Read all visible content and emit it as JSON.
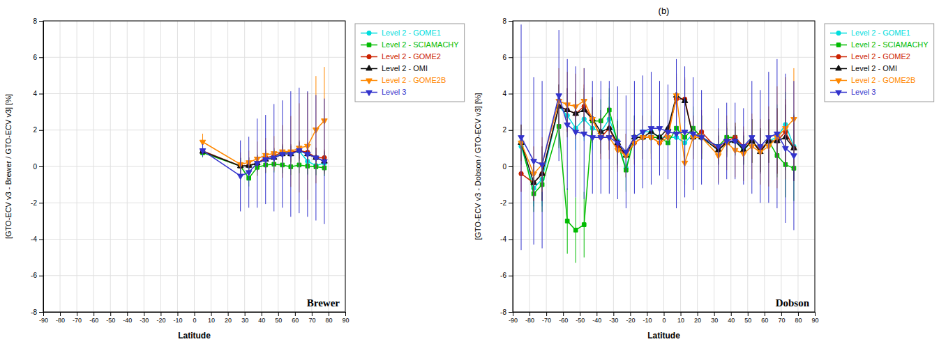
{
  "chart_data": [
    {
      "type": "line",
      "xlabel": "Latitude",
      "ylabel": "[GTO-ECV v3 - Brewer / GTO-ECV v3] [%]",
      "annotations": [
        "Brewer"
      ],
      "xlim": [
        -90,
        90
      ],
      "ylim": [
        -8,
        8
      ],
      "xticks": [
        -90,
        -80,
        -70,
        -60,
        -50,
        -40,
        -30,
        -20,
        -10,
        0,
        10,
        20,
        30,
        40,
        50,
        60,
        70,
        80,
        90
      ],
      "yticks": [
        -8,
        -6,
        -4,
        -2,
        0,
        2,
        4,
        6,
        8
      ],
      "grid": true,
      "legend": "right",
      "series": [
        {
          "name": "Level 2 - GOME1",
          "color": "#00dddd",
          "marker": "circle",
          "x": [
            5,
            27.5,
            32.5,
            37.5,
            42.5,
            47.5,
            52.5,
            57.5,
            62.5,
            67.5,
            72.5,
            77.5
          ],
          "values": [
            0.85,
            0.02,
            0.02,
            0.18,
            0.45,
            0.55,
            0.75,
            0.75,
            0.85,
            0.28,
            0.05,
            0.18
          ],
          "errors": [
            0.25,
            0.45,
            0.45,
            0.45,
            0.45,
            0.45,
            0.45,
            0.45,
            0.55,
            0.75,
            0.55,
            0.55
          ]
        },
        {
          "name": "Level 2 - SCIAMACHY",
          "color": "#00bb00",
          "marker": "square",
          "x": [
            5,
            27.5,
            32.5,
            37.5,
            42.5,
            47.5,
            52.5,
            57.5,
            62.5,
            67.5,
            72.5,
            77.5
          ],
          "values": [
            0.75,
            0.02,
            -0.65,
            -0.05,
            0.08,
            0.12,
            0.08,
            -0.02,
            0.08,
            0.02,
            -0.02,
            -0.08
          ],
          "errors": [
            0.25,
            0.45,
            0.45,
            0.45,
            0.45,
            0.45,
            0.45,
            0.45,
            0.45,
            0.45,
            0.45,
            0.45
          ]
        },
        {
          "name": "Level 2 - GOME2",
          "color": "#cc2200",
          "marker": "circle",
          "x": [
            5,
            27.5,
            32.5,
            37.5,
            42.5,
            47.5,
            52.5,
            57.5,
            62.5,
            67.5,
            72.5,
            77.5
          ],
          "values": [
            0.85,
            0.02,
            0.05,
            0.18,
            0.48,
            0.58,
            0.78,
            0.78,
            0.88,
            0.78,
            0.48,
            0.48
          ],
          "errors": [
            0.25,
            0.45,
            0.45,
            0.45,
            0.45,
            0.45,
            0.45,
            0.45,
            0.55,
            0.55,
            0.55,
            0.45
          ]
        },
        {
          "name": "Level 2 - OMI",
          "color": "#111111",
          "marker": "triangle-up",
          "x": [
            5,
            27.5,
            32.5,
            37.5,
            42.5,
            47.5,
            52.5,
            57.5,
            62.5,
            67.5,
            72.5,
            77.5
          ],
          "values": [
            0.82,
            0.02,
            0.05,
            0.18,
            0.38,
            0.48,
            0.68,
            0.68,
            0.88,
            0.68,
            0.48,
            0.28
          ],
          "errors": [
            0.25,
            0.45,
            0.45,
            0.45,
            0.45,
            0.45,
            0.45,
            0.45,
            0.45,
            0.45,
            0.55,
            0.55
          ]
        },
        {
          "name": "Level 2 - GOME2B",
          "color": "#ff8800",
          "marker": "triangle-down",
          "x": [
            5,
            27.5,
            32.5,
            37.5,
            42.5,
            47.5,
            52.5,
            57.5,
            62.5,
            67.5,
            72.5,
            77.5
          ],
          "values": [
            1.35,
            0.12,
            0.22,
            0.42,
            0.62,
            0.72,
            0.82,
            0.82,
            1.02,
            1.12,
            2.02,
            2.52
          ],
          "errors": [
            0.45,
            0.65,
            0.65,
            0.95,
            0.95,
            0.95,
            1.45,
            1.95,
            2.45,
            2.95,
            2.95,
            2.95
          ]
        },
        {
          "name": "Level 3",
          "color": "#3333cc",
          "marker": "triangle-down",
          "x": [
            5,
            27.5,
            32.5,
            37.5,
            42.5,
            47.5,
            52.5,
            57.5,
            62.5,
            67.5,
            72.5,
            77.5
          ],
          "values": [
            0.88,
            -0.52,
            -0.32,
            0.18,
            0.38,
            0.48,
            0.68,
            0.68,
            0.88,
            0.68,
            0.48,
            0.28
          ],
          "errors": [
            0.35,
            1.95,
            1.95,
            2.45,
            2.45,
            2.95,
            2.95,
            3.45,
            3.45,
            3.45,
            3.45,
            3.45
          ]
        }
      ]
    },
    {
      "type": "line",
      "title": "(b)",
      "xlabel": "Latitude",
      "ylabel": "[GTO-ECV v3 - Dobson / GTO-ECV v3] [%]",
      "annotations": [
        "Dobson"
      ],
      "xlim": [
        -90,
        90
      ],
      "ylim": [
        -8,
        8
      ],
      "xticks": [
        -90,
        -80,
        -70,
        -60,
        -50,
        -40,
        -30,
        -20,
        -10,
        0,
        10,
        20,
        30,
        40,
        50,
        60,
        70,
        80,
        90
      ],
      "yticks": [
        -8,
        -6,
        -4,
        -2,
        0,
        2,
        4,
        6,
        8
      ],
      "grid": true,
      "legend": "right",
      "series": [
        {
          "name": "Level 2 - GOME1",
          "color": "#00dddd",
          "marker": "circle",
          "x": [
            -85,
            -77.5,
            -72.5,
            -62.5,
            -57.5,
            -52.5,
            -47.5,
            -42.5,
            -37.5,
            -32.5,
            -27.5,
            -22.5,
            -17.5,
            -12.5,
            -7.5,
            -2.5,
            2.5,
            7.5,
            12.5,
            17.5,
            22.5,
            32.5,
            37.5,
            42.5,
            47.5,
            52.5,
            57.5,
            62.5,
            67.5,
            72.5,
            77.5
          ],
          "values": [
            1.1,
            -1.2,
            -0.7,
            3.3,
            2.8,
            2.1,
            2.6,
            2.1,
            1.9,
            2.6,
            1.4,
            -0.1,
            1.6,
            1.9,
            1.9,
            1.6,
            1.6,
            1.6,
            1.3,
            1.8,
            1.6,
            0.9,
            1.3,
            1.4,
            0.9,
            1.4,
            0.9,
            1.4,
            1.6,
            2.3,
            1.1
          ],
          "errors": [
            1.0,
            1.0,
            1.5,
            1.2,
            1.2,
            1.2,
            1.2,
            1.2,
            1.2,
            1.2,
            1.2,
            1.2,
            1.2,
            1.2,
            1.2,
            1.2,
            1.2,
            1.2,
            1.2,
            1.2,
            1.2,
            0.8,
            0.8,
            0.8,
            0.8,
            1.2,
            1.2,
            1.2,
            1.8,
            1.8,
            1.8
          ]
        },
        {
          "name": "Level 2 - SCIAMACHY",
          "color": "#00bb00",
          "marker": "square",
          "x": [
            -85,
            -77.5,
            -72.5,
            -62.5,
            -57.5,
            -52.5,
            -47.5,
            -42.5,
            -37.5,
            -32.5,
            -27.5,
            -22.5,
            -17.5,
            -12.5,
            -7.5,
            -2.5,
            2.5,
            7.5,
            12.5,
            17.5,
            22.5,
            32.5,
            37.5,
            42.5,
            47.5,
            52.5,
            57.5,
            62.5,
            67.5,
            72.5,
            77.5
          ],
          "values": [
            1.3,
            -1.5,
            -1.0,
            2.2,
            -3.0,
            -3.5,
            -3.2,
            2.5,
            2.5,
            3.1,
            1.3,
            -0.2,
            1.6,
            1.6,
            1.6,
            1.6,
            1.3,
            2.1,
            1.6,
            2.1,
            1.6,
            1.1,
            1.6,
            1.6,
            0.9,
            1.4,
            0.9,
            1.4,
            0.6,
            0.1,
            -0.1
          ],
          "errors": [
            1.0,
            1.0,
            1.5,
            1.2,
            1.8,
            1.8,
            1.8,
            1.2,
            1.2,
            1.2,
            1.2,
            1.2,
            1.2,
            1.2,
            1.2,
            1.2,
            1.2,
            1.2,
            1.2,
            1.2,
            1.2,
            0.8,
            0.8,
            0.8,
            0.8,
            1.2,
            1.2,
            1.2,
            1.2,
            1.8,
            1.8
          ]
        },
        {
          "name": "Level 2 - GOME2",
          "color": "#cc2200",
          "marker": "circle",
          "x": [
            -85,
            -77.5,
            -72.5,
            -62.5,
            -57.5,
            -52.5,
            -47.5,
            -42.5,
            -37.5,
            -32.5,
            -27.5,
            -22.5,
            -17.5,
            -12.5,
            -7.5,
            -2.5,
            2.5,
            7.5,
            12.5,
            17.5,
            22.5,
            32.5,
            37.5,
            42.5,
            47.5,
            52.5,
            57.5,
            62.5,
            67.5,
            72.5,
            77.5
          ],
          "values": [
            -0.4,
            -0.9,
            -0.4,
            3.3,
            3.1,
            2.9,
            3.3,
            2.6,
            1.6,
            2.1,
            1.1,
            0.6,
            1.3,
            1.6,
            1.6,
            1.3,
            1.9,
            3.7,
            3.7,
            1.6,
            1.9,
            0.9,
            1.4,
            1.6,
            1.1,
            1.4,
            0.9,
            1.4,
            1.4,
            1.9,
            1.0
          ],
          "errors": [
            1.0,
            1.0,
            1.5,
            1.2,
            1.2,
            1.2,
            1.2,
            1.2,
            1.2,
            1.2,
            1.2,
            1.2,
            1.2,
            1.2,
            1.2,
            1.2,
            1.2,
            1.2,
            1.2,
            1.2,
            1.2,
            0.8,
            0.8,
            0.8,
            0.8,
            1.2,
            1.2,
            1.2,
            1.8,
            1.8,
            1.8
          ]
        },
        {
          "name": "Level 2 - OMI",
          "color": "#111111",
          "marker": "triangle-up",
          "x": [
            -85,
            -77.5,
            -72.5,
            -62.5,
            -57.5,
            -52.5,
            -47.5,
            -42.5,
            -37.5,
            -32.5,
            -27.5,
            -22.5,
            -17.5,
            -12.5,
            -7.5,
            -2.5,
            2.5,
            7.5,
            12.5,
            17.5,
            22.5,
            32.5,
            37.5,
            42.5,
            47.5,
            52.5,
            57.5,
            62.5,
            67.5,
            72.5,
            77.5
          ],
          "values": [
            1.3,
            -0.9,
            -0.4,
            3.3,
            3.1,
            2.9,
            3.1,
            2.6,
            1.9,
            2.1,
            1.3,
            0.6,
            1.6,
            1.6,
            1.9,
            1.6,
            2.1,
            3.9,
            3.6,
            1.6,
            1.6,
            0.9,
            1.3,
            1.4,
            0.9,
            1.4,
            0.8,
            1.4,
            1.4,
            1.6,
            1.0
          ],
          "errors": [
            1.0,
            1.0,
            1.5,
            1.2,
            1.2,
            1.2,
            1.2,
            1.2,
            1.2,
            1.2,
            1.2,
            1.2,
            1.2,
            1.2,
            1.2,
            1.2,
            1.2,
            1.2,
            1.2,
            1.2,
            1.2,
            0.8,
            0.8,
            0.8,
            0.8,
            1.2,
            1.2,
            1.2,
            1.8,
            1.8,
            1.8
          ]
        },
        {
          "name": "Level 2 - GOME2B",
          "color": "#ff8800",
          "marker": "triangle-down",
          "x": [
            -85,
            -77.5,
            -72.5,
            -62.5,
            -57.5,
            -52.5,
            -47.5,
            -42.5,
            -37.5,
            -32.5,
            -27.5,
            -22.5,
            -17.5,
            -12.5,
            -7.5,
            -2.5,
            2.5,
            7.5,
            12.5,
            17.5,
            22.5,
            32.5,
            37.5,
            42.5,
            47.5,
            52.5,
            57.5,
            62.5,
            67.5,
            72.5,
            77.5
          ],
          "values": [
            1.3,
            -0.4,
            0.1,
            3.6,
            3.4,
            3.3,
            3.6,
            2.6,
            1.6,
            1.6,
            0.9,
            0.6,
            1.3,
            1.6,
            1.6,
            1.3,
            1.6,
            3.9,
            0.2,
            1.6,
            1.6,
            0.6,
            1.3,
            0.9,
            0.7,
            1.1,
            0.8,
            1.1,
            1.6,
            2.1,
            2.6
          ],
          "errors": [
            1.0,
            1.5,
            1.5,
            1.8,
            1.8,
            1.8,
            1.8,
            1.2,
            1.2,
            1.2,
            1.2,
            1.2,
            1.2,
            1.2,
            1.2,
            1.2,
            1.2,
            1.2,
            1.2,
            1.2,
            1.2,
            1.5,
            1.5,
            1.5,
            1.5,
            1.8,
            1.8,
            2.2,
            2.8,
            2.8,
            2.8
          ]
        },
        {
          "name": "Level 3",
          "color": "#3333cc",
          "marker": "triangle-down",
          "x": [
            -85,
            -77.5,
            -72.5,
            -62.5,
            -57.5,
            -52.5,
            -47.5,
            -42.5,
            -37.5,
            -32.5,
            -27.5,
            -22.5,
            -17.5,
            -12.5,
            -7.5,
            -2.5,
            2.5,
            7.5,
            12.5,
            17.5,
            22.5,
            32.5,
            37.5,
            42.5,
            47.5,
            52.5,
            57.5,
            62.5,
            67.5,
            72.5,
            77.5
          ],
          "values": [
            1.6,
            0.3,
            0.1,
            3.9,
            2.3,
            1.9,
            1.8,
            1.6,
            1.6,
            1.6,
            1.3,
            0.8,
            1.6,
            1.9,
            2.1,
            2.1,
            1.9,
            1.8,
            1.9,
            1.8,
            1.6,
            1.1,
            1.4,
            1.4,
            1.1,
            1.6,
            1.1,
            1.6,
            1.8,
            1.0,
            0.6
          ],
          "errors": [
            6.2,
            4.6,
            4.6,
            3.6,
            3.6,
            3.6,
            3.6,
            3.1,
            3.1,
            3.1,
            3.1,
            3.1,
            3.1,
            3.1,
            3.1,
            2.6,
            2.6,
            4.1,
            3.6,
            3.1,
            2.6,
            2.1,
            2.1,
            2.1,
            2.1,
            3.1,
            3.1,
            3.6,
            4.1,
            4.1,
            4.1
          ]
        }
      ]
    }
  ]
}
